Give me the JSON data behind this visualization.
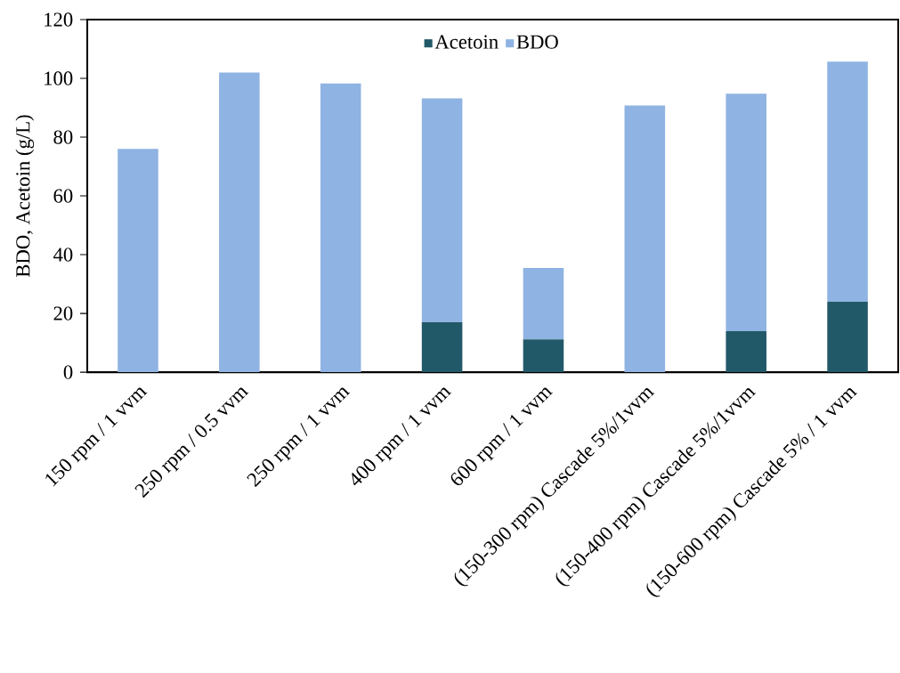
{
  "chart_data": {
    "type": "bar",
    "stacked": true,
    "ylabel": "BDO, Acetoin (g/L)",
    "categories": [
      "150 rpm / 1 vvm",
      "250 rpm / 0.5 vvm",
      "250 rpm / 1 vvm",
      "400 rpm / 1 vvm",
      "600 rpm / 1 vvm",
      "(150-300 rpm) Cascade 5%/1vvm",
      "(150-400 rpm) Cascade 5%/1vvm",
      "(150-600 rpm) Cascade 5% / 1 vvm"
    ],
    "series": [
      {
        "name": "Acetoin",
        "color": "#225968",
        "values": [
          0,
          0,
          0,
          17,
          11.2,
          0,
          14,
          24
        ]
      },
      {
        "name": "BDO",
        "color": "#8fb3e2",
        "values": [
          76,
          102,
          98.3,
          76.2,
          24.3,
          90.8,
          80.8,
          81.7
        ]
      }
    ],
    "ylim": [
      0,
      120
    ],
    "yticks": [
      0,
      20,
      40,
      60,
      80,
      100,
      120
    ],
    "grid": false,
    "legend": "top"
  }
}
